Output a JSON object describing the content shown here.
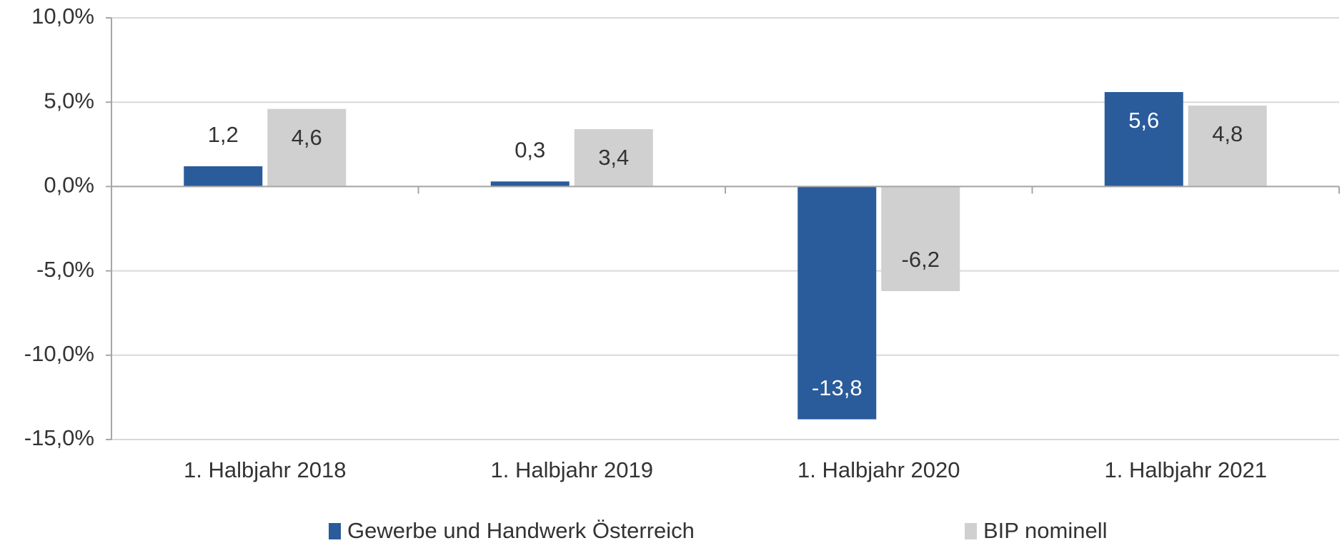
{
  "chart_data": {
    "type": "bar",
    "categories": [
      "1. Halbjahr 2018",
      "1. Halbjahr 2019",
      "1. Halbjahr 2020",
      "1. Halbjahr 2021"
    ],
    "series": [
      {
        "name": "Gewerbe und Handwerk Österreich",
        "color": "#2a5b9b",
        "label_color_inside": "#ffffff",
        "values": [
          1.2,
          0.3,
          -13.8,
          5.6
        ],
        "value_labels": [
          "1,2",
          "0,3",
          "-13,8",
          "5,6"
        ]
      },
      {
        "name": "BIP nominell",
        "color": "#d0d0d0",
        "label_color_inside": "#333333",
        "values": [
          4.6,
          3.4,
          -6.2,
          4.8
        ],
        "value_labels": [
          "4,6",
          "3,4",
          "-6,2",
          "4,8"
        ]
      }
    ],
    "ylim": [
      -15,
      10
    ],
    "yticks": [
      {
        "value": -15,
        "label": "-15,0%"
      },
      {
        "value": -10,
        "label": "-10,0%"
      },
      {
        "value": -5,
        "label": "-5,0%"
      },
      {
        "value": 0,
        "label": "0,0%"
      },
      {
        "value": 5,
        "label": "5,0%"
      },
      {
        "value": 10,
        "label": "10,0%"
      }
    ],
    "grid": true,
    "legend": "bottom"
  }
}
